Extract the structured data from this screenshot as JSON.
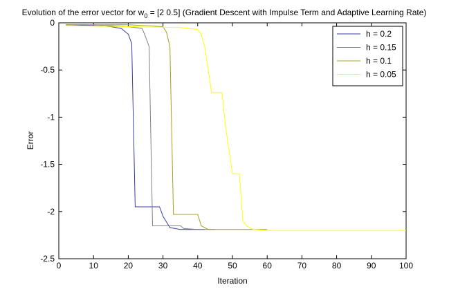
{
  "chart_data": {
    "type": "line",
    "title_prefix": "Evolution of the error vector for w",
    "title_sub": "0",
    "title_suffix": " = [2 0.5] (Gradient Descent with Impulse Term and Adaptive Learning Rate)",
    "xlabel": "Iteration",
    "ylabel": "Error",
    "xlim": [
      0,
      100
    ],
    "ylim": [
      -2.5,
      0
    ],
    "xticks": [
      0,
      10,
      20,
      30,
      40,
      50,
      60,
      70,
      80,
      90,
      100
    ],
    "yticks": [
      0,
      -0.5,
      -1,
      -1.5,
      -2,
      -2.5
    ],
    "xtick_labels": [
      "0",
      "10",
      "20",
      "30",
      "40",
      "50",
      "60",
      "70",
      "80",
      "90",
      "100"
    ],
    "ytick_labels": [
      "0",
      "-0.5",
      "-1",
      "-1.5",
      "-2",
      "-2.5"
    ],
    "grid": false,
    "legend_position": "top-right",
    "series": [
      {
        "name": "h = 0.2",
        "color": "#3a3aa8",
        "x": [
          2,
          10,
          15,
          18,
          20,
          21,
          22,
          23,
          24,
          29,
          30,
          32,
          35,
          40,
          42
        ],
        "y": [
          -0.02,
          -0.03,
          -0.04,
          -0.06,
          -0.12,
          -0.22,
          -1.95,
          -1.95,
          -1.95,
          -1.95,
          -2.05,
          -2.17,
          -2.19,
          -2.19,
          -2.19
        ]
      },
      {
        "name": "h = 0.15",
        "color": "#808080",
        "x": [
          2,
          10,
          20,
          24,
          25,
          26,
          27,
          30,
          35,
          36,
          40,
          45
        ],
        "y": [
          -0.02,
          -0.02,
          -0.04,
          -0.06,
          -0.15,
          -0.25,
          -2.15,
          -2.15,
          -2.15,
          -2.18,
          -2.19,
          -2.19
        ]
      },
      {
        "name": "h = 0.1",
        "color": "#a0a020",
        "x": [
          2,
          20,
          30,
          31,
          32,
          33,
          34,
          40,
          41,
          43,
          50,
          60
        ],
        "y": [
          -0.02,
          -0.02,
          -0.04,
          -0.1,
          -0.25,
          -2.03,
          -2.03,
          -2.03,
          -2.15,
          -2.19,
          -2.19,
          -2.19
        ]
      },
      {
        "name": "h = 0.05",
        "color": "#ffff00",
        "x": [
          2,
          20,
          35,
          40,
          41,
          42,
          44,
          45,
          47,
          48,
          50,
          52,
          53,
          54,
          56,
          60,
          100
        ],
        "y": [
          -0.03,
          -0.04,
          -0.05,
          -0.07,
          -0.12,
          -0.25,
          -0.74,
          -0.74,
          -0.74,
          -1.1,
          -1.6,
          -1.6,
          -2.1,
          -2.15,
          -2.19,
          -2.2,
          -2.2
        ]
      }
    ]
  }
}
